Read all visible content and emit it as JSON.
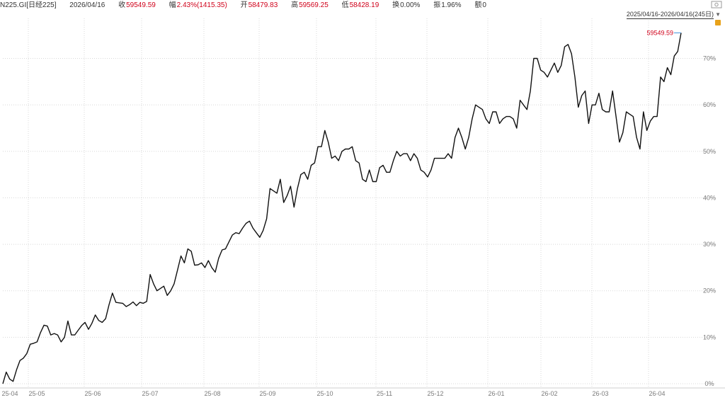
{
  "header": {
    "symbol": "N225.GI[日经225]",
    "date": "2026/04/16",
    "close_label": "收",
    "close_value": "59549.59",
    "change_label": "幅",
    "change_value": "2.43%(1415.35)",
    "open_label": "开",
    "open_value": "58479.83",
    "high_label": "高",
    "high_value": "59569.25",
    "low_label": "低",
    "low_value": "58428.19",
    "turnover_label": "换",
    "turnover_value": "0.00%",
    "amplitude_label": "振",
    "amplitude_value": "1.96%",
    "amount_label": "额",
    "amount_value": "0"
  },
  "range_selector": {
    "label": "2025/04/16-2026/04/16(245日)",
    "arrow_icon": "triangle-down-icon"
  },
  "colors": {
    "line": "#111111",
    "grid": "#d8d8d8",
    "accent": "#d0021b"
  },
  "chart_data": {
    "type": "line",
    "title": "",
    "ylabel": "",
    "xlabel": "",
    "ylim": [
      0,
      78
    ],
    "y_ticks": [
      0,
      10,
      20,
      30,
      40,
      50,
      60,
      70
    ],
    "y_tick_labels": [
      "0%",
      "10%",
      "20%",
      "30%",
      "40%",
      "50%",
      "60%",
      "70%"
    ],
    "x_tick_labels": [
      "25-04",
      "25-05",
      "25-06",
      "25-07",
      "25-08",
      "25-09",
      "25-10",
      "25-11",
      "25-12",
      "26-01",
      "26-02",
      "26-03",
      "26-04"
    ],
    "last_value_label": "59549.59",
    "series": [
      {
        "values": [
          0,
          2.5,
          1,
          0.5,
          3,
          5,
          5.5,
          6.5,
          8.5,
          8.7,
          9,
          11,
          12.6,
          12.4,
          10.5,
          10.8,
          10.5,
          9,
          10,
          13.5,
          10.5,
          10.5,
          11.5,
          12.5,
          13.2,
          11.7,
          13,
          14.8,
          13.6,
          13.2,
          14,
          17,
          19.5,
          17.5,
          17.4,
          17.3,
          16.6,
          17,
          17.6,
          16.8,
          17.5,
          17.3,
          17.7,
          23.5,
          21.5,
          20,
          20.5,
          21,
          19,
          20,
          21.5,
          24.5,
          27.5,
          26,
          29,
          28.5,
          25.5,
          25.6,
          26,
          25,
          26.5,
          25,
          24,
          27,
          28.8,
          29,
          30.5,
          32,
          32.5,
          32.3,
          33.5,
          34.5,
          35,
          33.5,
          32.5,
          31.5,
          33,
          35.5,
          42,
          41.5,
          41,
          44,
          39,
          40.5,
          42.5,
          38,
          42,
          45,
          45.5,
          44,
          47,
          47.5,
          51,
          51,
          54.5,
          52,
          48.5,
          49,
          48,
          50,
          50.5,
          50.5,
          51,
          48,
          47.5,
          44,
          43.5,
          46,
          43.5,
          43.5,
          46.5,
          47,
          45.5,
          45.5,
          48,
          50,
          49,
          49.5,
          49.5,
          48,
          49.5,
          48.5,
          46,
          45.5,
          44.5,
          46,
          48.5,
          48.5,
          48.5,
          48.5,
          49.5,
          48.5,
          53,
          55,
          53,
          50.5,
          53,
          57,
          60,
          59.5,
          59,
          57,
          56,
          58.5,
          58.5,
          56,
          57,
          57.5,
          57.5,
          57,
          55,
          61,
          60,
          59,
          63,
          70,
          70,
          67.5,
          67,
          66,
          67.5,
          69,
          67,
          68.5,
          72.5,
          73,
          71,
          66,
          59.5,
          62,
          63,
          56,
          60,
          60,
          62.5,
          59,
          58.5,
          58.5,
          63,
          57.5,
          52,
          54,
          58.5,
          58,
          57.5,
          53,
          50.5,
          58.5,
          54.5,
          56.5,
          57.5,
          57.5,
          66,
          65,
          68,
          66.5,
          70.5,
          71.5,
          75.5
        ]
      }
    ]
  }
}
